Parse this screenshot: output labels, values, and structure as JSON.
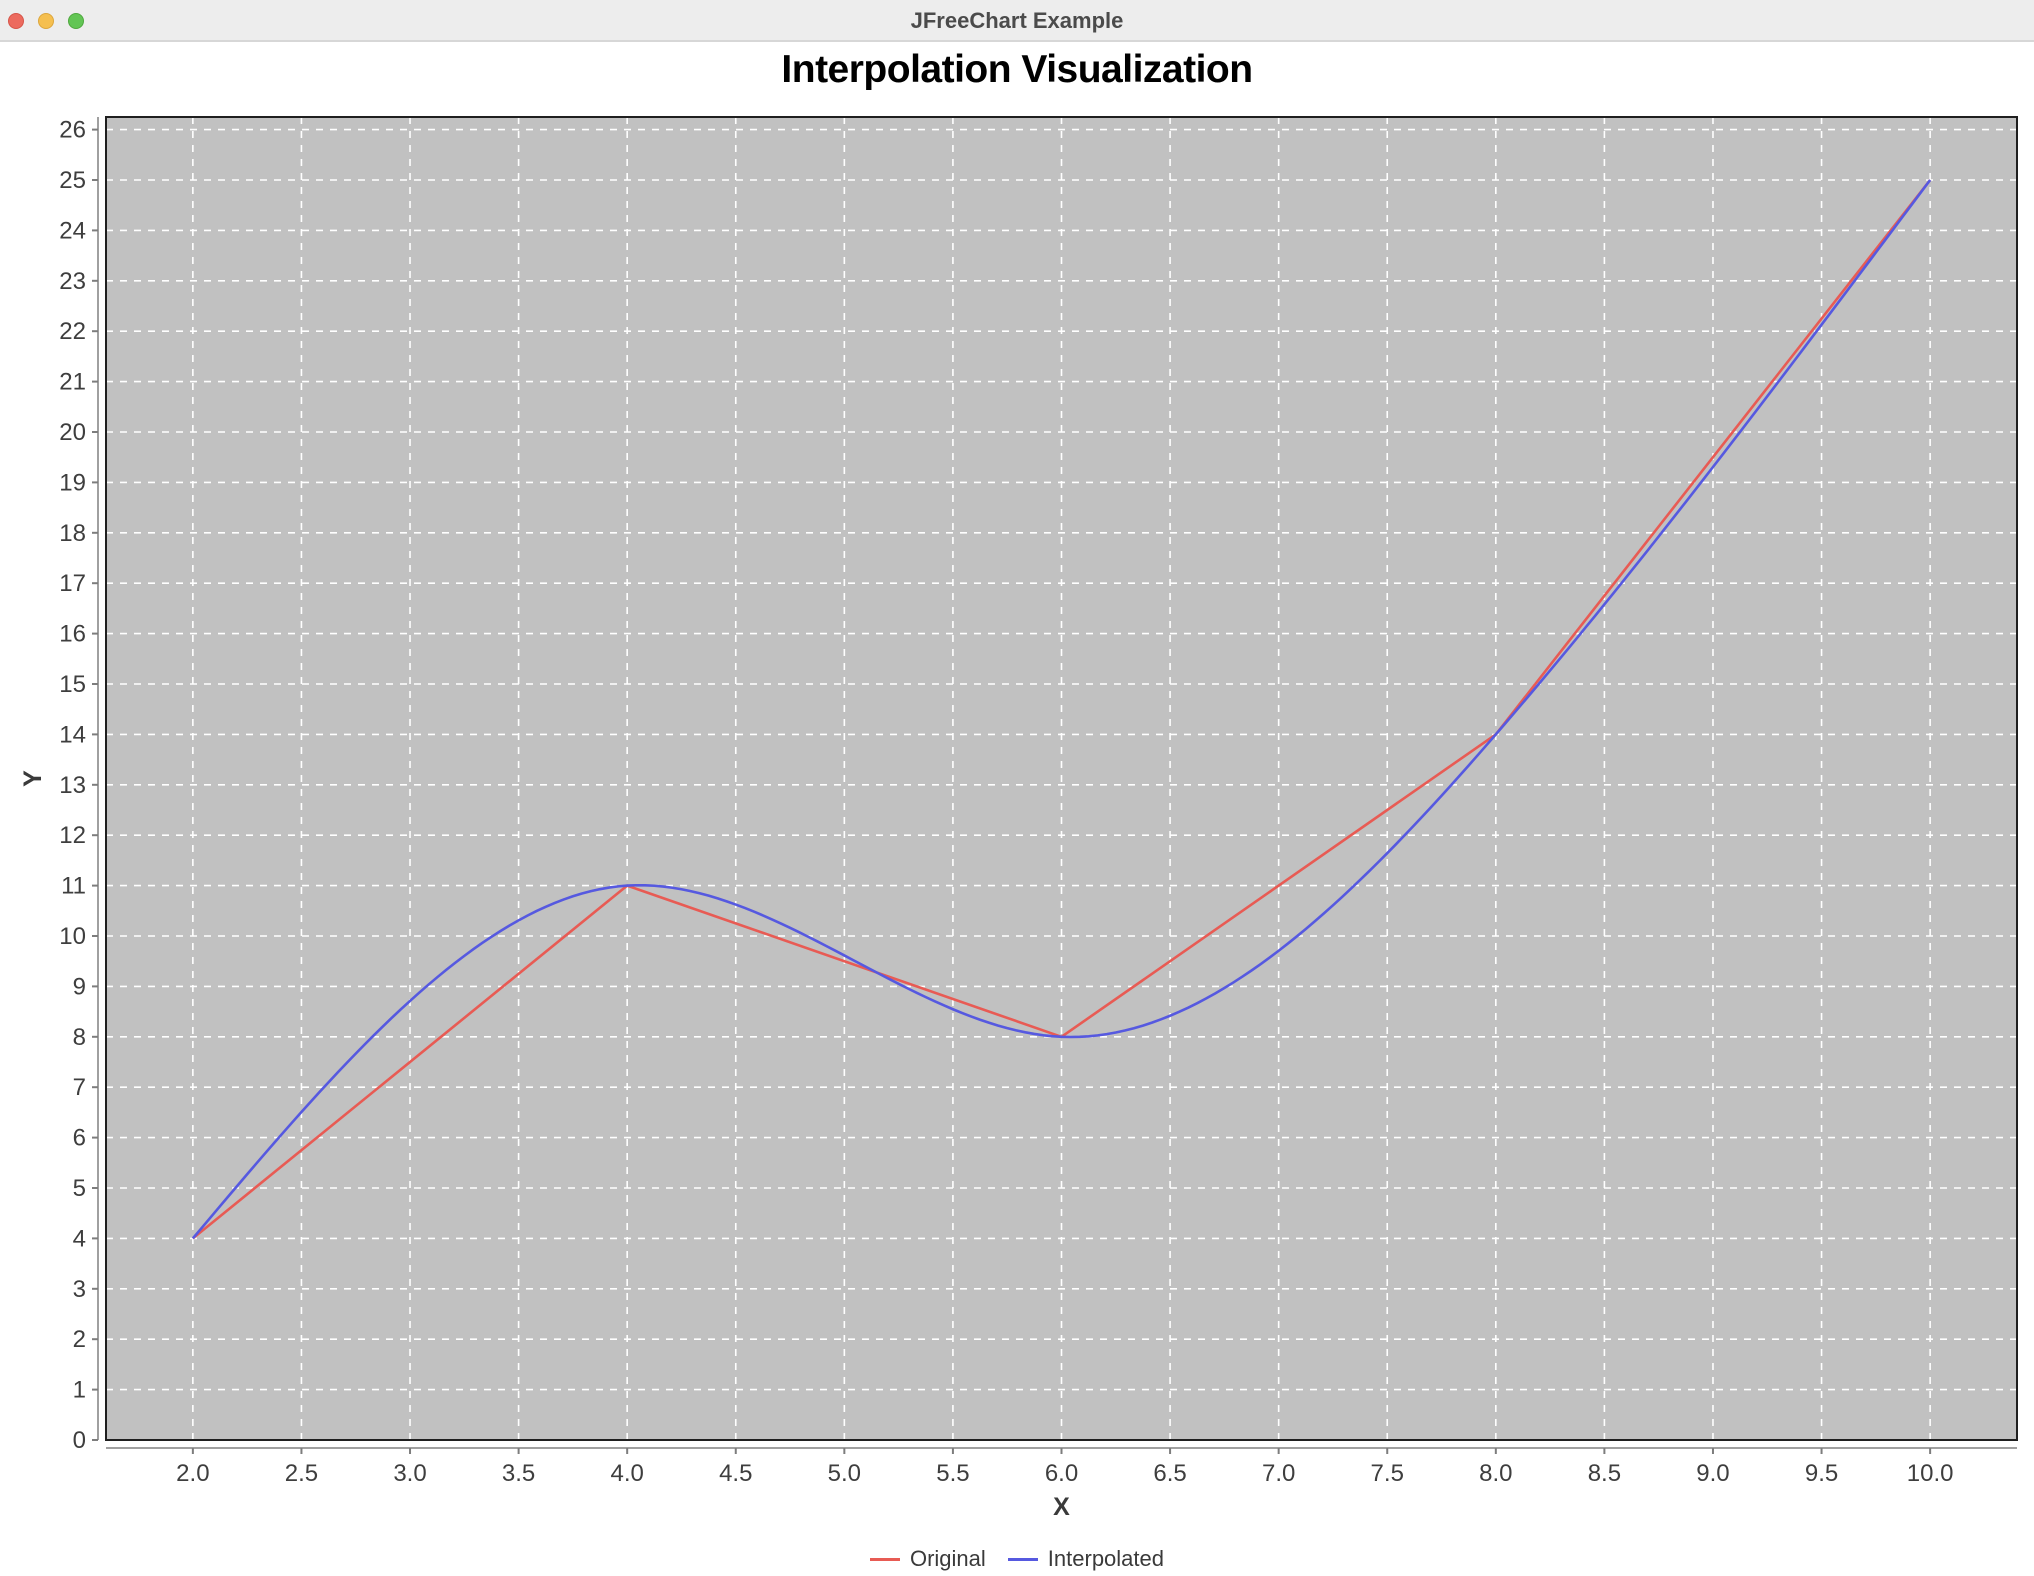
{
  "window": {
    "title": "JFreeChart Example",
    "controls": {
      "close": "close",
      "minimize": "minimize",
      "zoom": "zoom"
    }
  },
  "chart_data": {
    "type": "line",
    "title": "Interpolation Visualization",
    "xlabel": "X",
    "ylabel": "Y",
    "x_axis": {
      "min": 1.6,
      "max": 10.4,
      "tick_labels": [
        "2.0",
        "2.5",
        "3.0",
        "3.5",
        "4.0",
        "4.5",
        "5.0",
        "5.5",
        "6.0",
        "6.5",
        "7.0",
        "7.5",
        "8.0",
        "8.5",
        "9.0",
        "9.5",
        "10.0"
      ]
    },
    "y_axis": {
      "min": 0,
      "max": 26.25,
      "tick_labels": [
        "0",
        "1",
        "2",
        "3",
        "4",
        "5",
        "6",
        "7",
        "8",
        "9",
        "10",
        "11",
        "12",
        "13",
        "14",
        "15",
        "16",
        "17",
        "18",
        "19",
        "20",
        "21",
        "22",
        "23",
        "24",
        "25",
        "26"
      ]
    },
    "grid": true,
    "legend_position": "bottom",
    "series": [
      {
        "name": "Original",
        "color": "#e85b54",
        "interpolation": "linear",
        "points": [
          [
            2,
            4
          ],
          [
            4,
            11
          ],
          [
            6,
            8
          ],
          [
            8,
            14
          ],
          [
            10,
            25
          ]
        ]
      },
      {
        "name": "Interpolated",
        "color": "#5659e0",
        "interpolation": "natural-cubic-spline",
        "points": [
          [
            2,
            4
          ],
          [
            4,
            11
          ],
          [
            6,
            8
          ],
          [
            8,
            14
          ],
          [
            10,
            25
          ]
        ]
      }
    ],
    "style": {
      "plot_background": "#c1c1c1",
      "gridline_color": "#ffffff",
      "outline_color": "#1f1f1f",
      "axis_line_color": "#a0a0a0",
      "tick_color": "#7d7d7d",
      "tick_label_color": "#3e3e3e",
      "axis_label_color": "#3a3a3a"
    }
  }
}
